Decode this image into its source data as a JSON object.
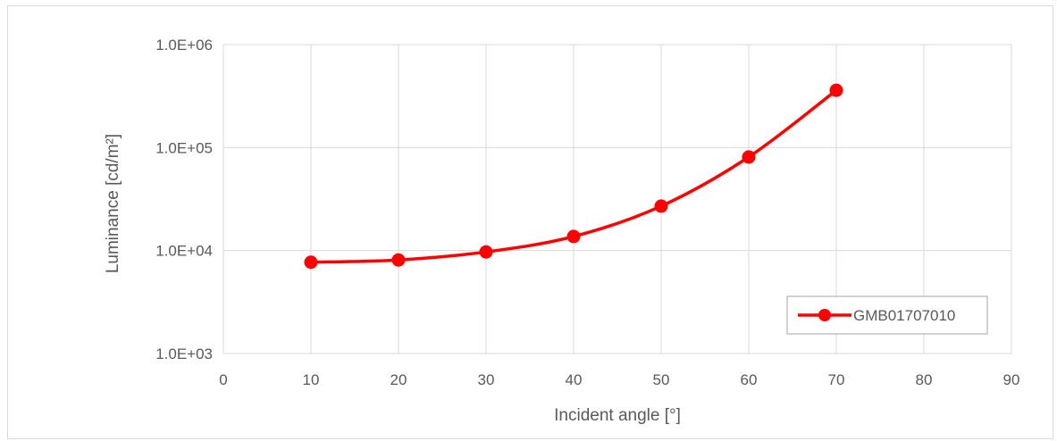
{
  "chart_data": {
    "type": "line",
    "title": "",
    "xlabel": "Incident angle [°]",
    "ylabel": "Luminance [cd/m²]",
    "xlim": [
      0,
      90
    ],
    "ylim": [
      1000,
      1000000
    ],
    "yscale": "log",
    "grid": true,
    "legend_position": "bottom-right",
    "x_ticks": [
      0,
      10,
      20,
      30,
      40,
      50,
      60,
      70,
      80,
      90
    ],
    "x_tick_labels": [
      "0",
      "10",
      "20",
      "30",
      "40",
      "50",
      "60",
      "70",
      "80",
      "90"
    ],
    "y_ticks": [
      1000,
      10000,
      100000,
      1000000
    ],
    "y_tick_labels": [
      "1.0E+03",
      "1.0E+04",
      "1.0E+05",
      "1.0E+06"
    ],
    "series": [
      {
        "name": "GMB01707010",
        "color": "#ff0000",
        "marker": "circle",
        "smooth": true,
        "x": [
          10,
          20,
          30,
          40,
          50,
          60,
          70
        ],
        "y": [
          7700,
          8100,
          9700,
          13700,
          27000,
          81000,
          360000
        ]
      }
    ]
  }
}
